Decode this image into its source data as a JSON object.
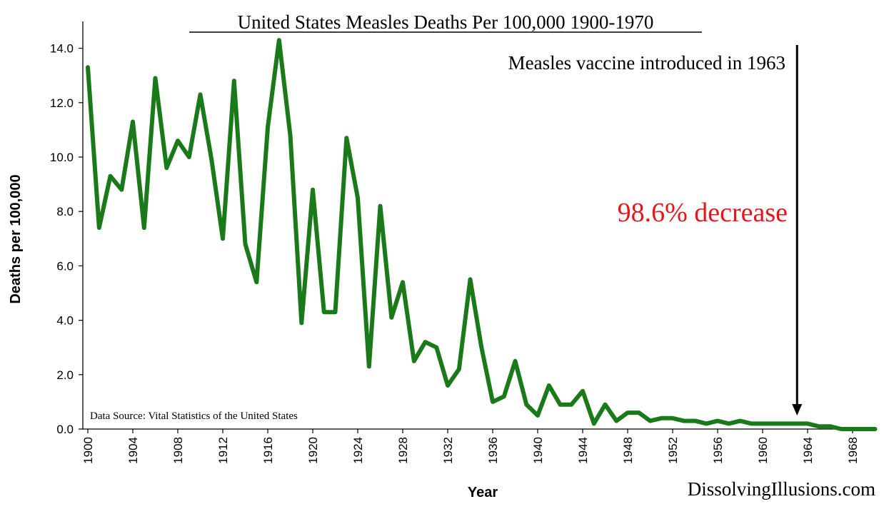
{
  "colors": {
    "line": "#1a7a1a",
    "axis": "#000000",
    "highlight": "#e8141c",
    "arrow": "#000000"
  },
  "chart_data": {
    "type": "line",
    "title": "United States Measles Deaths Per 100,000 1900-1970",
    "xlabel": "Year",
    "ylabel": "Deaths per 100,000",
    "xlim": [
      1900,
      1970
    ],
    "ylim": [
      0,
      14.0
    ],
    "grid": false,
    "legend": "none",
    "y_ticks": [
      "0.0",
      "2.0",
      "4.0",
      "6.0",
      "8.0",
      "10.0",
      "12.0",
      "14.0"
    ],
    "y_tick_values": [
      0,
      2,
      4,
      6,
      8,
      10,
      12,
      14
    ],
    "x_ticks": [
      "1900",
      "1904",
      "1908",
      "1912",
      "1916",
      "1920",
      "1924",
      "1928",
      "1932",
      "1936",
      "1940",
      "1944",
      "1948",
      "1952",
      "1956",
      "1960",
      "1964",
      "1968"
    ],
    "x_tick_values": [
      1900,
      1904,
      1908,
      1912,
      1916,
      1920,
      1924,
      1928,
      1932,
      1936,
      1940,
      1944,
      1948,
      1952,
      1956,
      1960,
      1964,
      1968
    ],
    "series": [
      {
        "x": [
          1900,
          1901,
          1902,
          1903,
          1904,
          1905,
          1906,
          1907,
          1908,
          1909,
          1910,
          1911,
          1912,
          1913,
          1914,
          1915,
          1916,
          1917,
          1918,
          1919,
          1920,
          1921,
          1922,
          1923,
          1924,
          1925,
          1926,
          1927,
          1928,
          1929,
          1930,
          1931,
          1932,
          1933,
          1934,
          1935,
          1936,
          1937,
          1938,
          1939,
          1940,
          1941,
          1942,
          1943,
          1944,
          1945,
          1946,
          1947,
          1948,
          1949,
          1950,
          1951,
          1952,
          1953,
          1954,
          1955,
          1956,
          1957,
          1958,
          1959,
          1960,
          1961,
          1962,
          1963,
          1964,
          1965,
          1966,
          1967,
          1968,
          1969,
          1970
        ],
        "values": [
          13.3,
          7.4,
          9.3,
          8.8,
          11.3,
          7.4,
          12.9,
          9.6,
          10.6,
          10.0,
          12.3,
          9.9,
          7.0,
          12.8,
          6.8,
          5.4,
          11.1,
          14.3,
          10.8,
          3.9,
          8.8,
          4.3,
          4.3,
          10.7,
          8.5,
          2.3,
          8.2,
          4.1,
          5.4,
          2.5,
          3.2,
          3.0,
          1.6,
          2.2,
          5.5,
          3.0,
          1.0,
          1.2,
          2.5,
          0.9,
          0.5,
          1.6,
          0.9,
          0.9,
          1.4,
          0.2,
          0.9,
          0.3,
          0.6,
          0.6,
          0.3,
          0.4,
          0.4,
          0.3,
          0.3,
          0.2,
          0.3,
          0.2,
          0.3,
          0.2,
          0.2,
          0.2,
          0.2,
          0.2,
          0.2,
          0.1,
          0.1,
          0.0,
          0.0,
          0.0,
          0.0
        ]
      }
    ],
    "annotations": {
      "vaccine_note": "Measles vaccine introduced in 1963",
      "decrease_note": "98.6% decrease",
      "arrow_year": 1963,
      "source": "Data Source:  Vital Statistics of the United States",
      "website": "DissolvingIllusions.com"
    }
  }
}
